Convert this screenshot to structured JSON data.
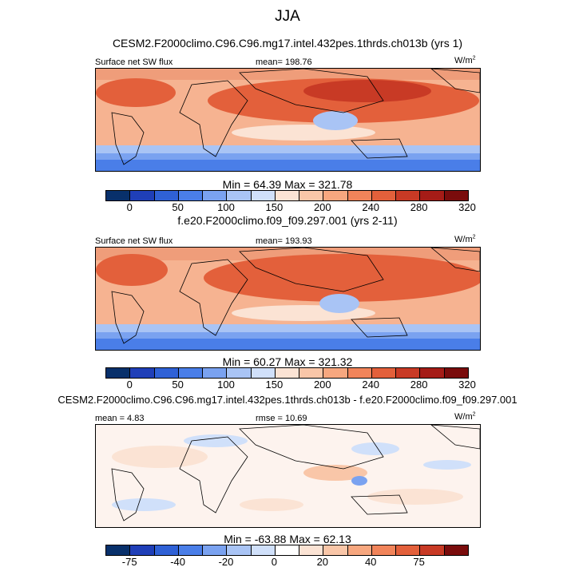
{
  "figure_title": "JJA",
  "panels": [
    {
      "case_title": "CESM2.F2000climo.C96.C96.mg17.intel.432pes.1thrds.ch013b (yrs 1)",
      "left_label": "Surface net SW flux",
      "center_label": "mean= 198.76",
      "units": "W/m",
      "units_sup": "2",
      "stats": "Min =  64.39 Max = 321.78",
      "colorbar": {
        "colors": [
          "#08306b",
          "#1f3fb8",
          "#2f61d6",
          "#4a7ee8",
          "#7aa2f0",
          "#a9c4f5",
          "#d0e0fa",
          "#fbe3d4",
          "#f9c6a8",
          "#f7a77f",
          "#f1845a",
          "#e3603b",
          "#c83a25",
          "#a51c17",
          "#7a0c0c"
        ],
        "ticks": [
          "0",
          "50",
          "100",
          "150",
          "200",
          "240",
          "280",
          "320"
        ]
      }
    },
    {
      "case_title": "f.e20.F2000climo.f09_f09.297.001 (yrs 2-11)",
      "left_label": "Surface net SW flux",
      "center_label": "mean= 193.93",
      "units": "W/m",
      "units_sup": "2",
      "stats": "Min =  60.27 Max = 321.32",
      "colorbar": {
        "colors": [
          "#08306b",
          "#1f3fb8",
          "#2f61d6",
          "#4a7ee8",
          "#7aa2f0",
          "#a9c4f5",
          "#d0e0fa",
          "#fbe3d4",
          "#f9c6a8",
          "#f7a77f",
          "#f1845a",
          "#e3603b",
          "#c83a25",
          "#a51c17",
          "#7a0c0c"
        ],
        "ticks": [
          "0",
          "50",
          "100",
          "150",
          "200",
          "240",
          "280",
          "320"
        ]
      }
    },
    {
      "case_title": "CESM2.F2000climo.C96.C96.mg17.intel.432pes.1thrds.ch013b - f.e20.F2000climo.f09_f09.297.001",
      "left_label": "mean =  4.83",
      "center_label": "rmse =  10.69",
      "units": "W/m",
      "units_sup": "2",
      "stats": "Min = -63.88 Max =  62.13",
      "colorbar": {
        "colors": [
          "#08306b",
          "#1f3fb8",
          "#2f61d6",
          "#4a7ee8",
          "#7aa2f0",
          "#a9c4f5",
          "#d0e0fa",
          "#ffffff",
          "#fbe3d4",
          "#f9c6a8",
          "#f7a77f",
          "#f1845a",
          "#e3603b",
          "#c83a25",
          "#7a0c0c"
        ],
        "ticks": [
          "-75",
          "-40",
          "-20",
          "0",
          "20",
          "40",
          "75"
        ]
      }
    }
  ]
}
